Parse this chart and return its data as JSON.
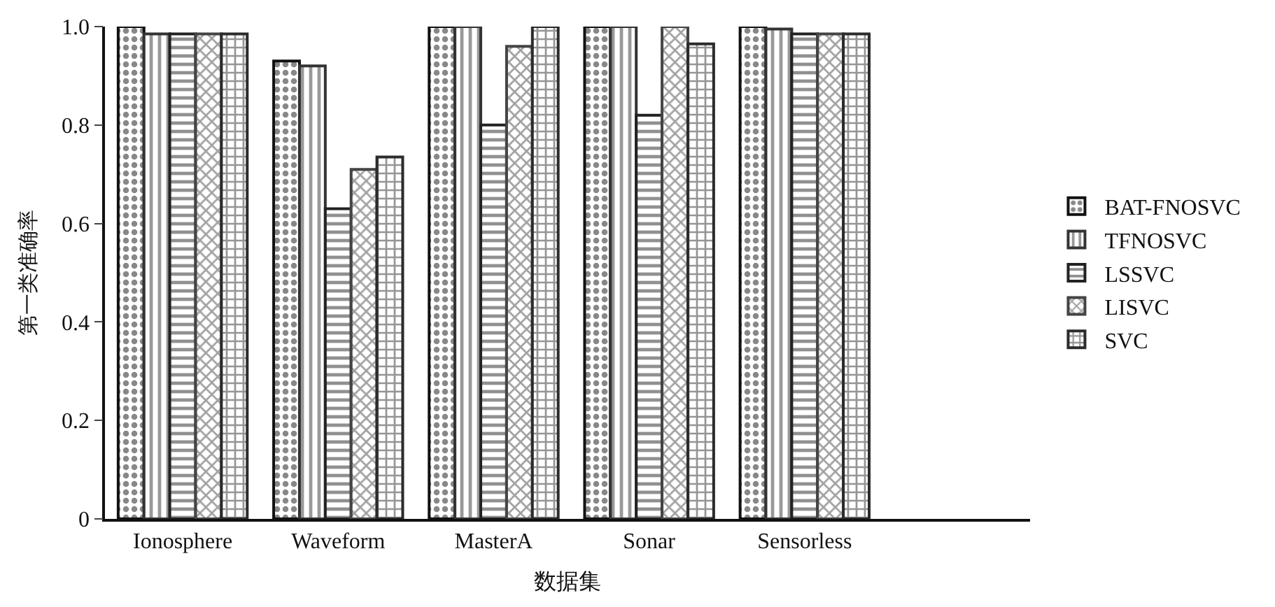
{
  "chart_data": {
    "type": "bar",
    "xlabel": "数据集",
    "ylabel": "第一类准确率",
    "categories": [
      "Ionosphere",
      "Waveform",
      "MasterA",
      "Sonar",
      "Sensorless"
    ],
    "series": [
      {
        "name": "BAT-FNOSVC",
        "color": "#111111",
        "values": [
          1.0,
          0.93,
          1.0,
          1.0,
          1.0
        ]
      },
      {
        "name": "TFNOSVC",
        "color": "#333333",
        "values": [
          0.985,
          0.92,
          1.0,
          1.0,
          0.995
        ]
      },
      {
        "name": "LSSVC",
        "color": "#222222",
        "values": [
          0.985,
          0.63,
          0.8,
          0.82,
          0.985
        ]
      },
      {
        "name": "LISVC",
        "color": "#444444",
        "values": [
          0.985,
          0.71,
          0.96,
          1.0,
          0.985
        ]
      },
      {
        "name": "SVC",
        "color": "#2b2b2b",
        "values": [
          0.985,
          0.735,
          1.0,
          0.965,
          0.985
        ]
      }
    ],
    "ylim": [
      0,
      1.0
    ],
    "yticks": [
      0,
      {
        "value": 0.2,
        "label": "0.2"
      },
      {
        "value": 0.4,
        "label": "0.4"
      },
      {
        "value": 0.6,
        "label": "0.6"
      },
      {
        "value": 0.8,
        "label": "0.8"
      },
      {
        "value": 1.0,
        "label": "1.0"
      }
    ],
    "legend": "right"
  }
}
